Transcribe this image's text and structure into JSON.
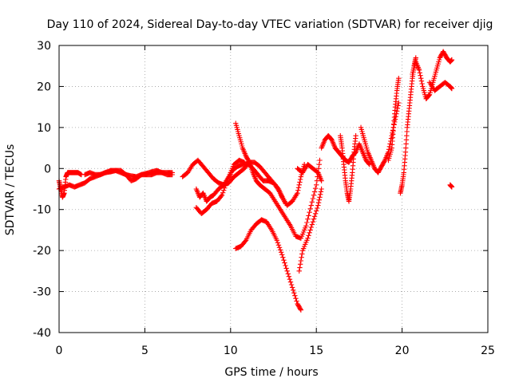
{
  "chart_data": {
    "type": "scatter",
    "title": "Day 110 of 2024, Sidereal Day-to-day VTEC variation (SDTVAR) for receiver djig",
    "xlabel": "GPS time / hours",
    "ylabel": "SDTVAR / TECUs",
    "xlim": [
      0,
      25
    ],
    "ylim": [
      -40,
      30
    ],
    "xticks": [
      0,
      5,
      10,
      15,
      20,
      25
    ],
    "yticks": [
      -40,
      -30,
      -20,
      -10,
      0,
      10,
      20,
      30
    ],
    "xtick_labels": [
      "0",
      "5",
      "10",
      "15",
      "20",
      "25"
    ],
    "ytick_labels": [
      "-40",
      "-30",
      "-20",
      "-10",
      "0",
      "10",
      "20",
      "30"
    ],
    "grid": true,
    "legend": "none",
    "marker": "plus",
    "color": "#ff0000",
    "series": [
      {
        "values": [
          [
            0.0,
            -3
          ],
          [
            0.1,
            -5
          ],
          [
            0.2,
            -7
          ],
          [
            0.3,
            -6
          ],
          [
            0.4,
            -2
          ],
          [
            0.5,
            -1
          ],
          [
            0.7,
            -1
          ],
          [
            0.9,
            -1
          ],
          [
            1.1,
            -1
          ],
          [
            1.3,
            -1.5
          ]
        ]
      },
      {
        "values": [
          [
            0.0,
            -5
          ],
          [
            0.3,
            -4.5
          ],
          [
            0.6,
            -4
          ],
          [
            0.9,
            -4.5
          ],
          [
            1.2,
            -4
          ],
          [
            1.5,
            -3.5
          ],
          [
            1.8,
            -2.5
          ],
          [
            2.1,
            -2
          ],
          [
            2.4,
            -1.5
          ],
          [
            2.7,
            -1
          ],
          [
            3.0,
            -0.5
          ],
          [
            3.3,
            -0.5
          ],
          [
            3.6,
            -0.5
          ],
          [
            3.9,
            -1.5
          ],
          [
            4.2,
            -3
          ],
          [
            4.5,
            -2.5
          ],
          [
            4.8,
            -1.5
          ],
          [
            5.1,
            -1.5
          ],
          [
            5.4,
            -1.5
          ],
          [
            5.7,
            -1
          ],
          [
            6.0,
            -1
          ],
          [
            6.3,
            -1
          ],
          [
            6.6,
            -1
          ]
        ]
      },
      {
        "values": [
          [
            1.5,
            -1.5
          ],
          [
            1.8,
            -1
          ],
          [
            2.1,
            -1.5
          ],
          [
            2.4,
            -1.5
          ],
          [
            2.7,
            -1
          ],
          [
            3.0,
            -0.8
          ],
          [
            3.3,
            -0.5
          ],
          [
            3.6,
            -1
          ],
          [
            3.9,
            -1.5
          ],
          [
            4.2,
            -1.8
          ],
          [
            4.5,
            -2
          ],
          [
            4.8,
            -1.5
          ],
          [
            5.1,
            -1.2
          ],
          [
            5.4,
            -0.8
          ],
          [
            5.7,
            -0.5
          ],
          [
            6.0,
            -1
          ],
          [
            6.3,
            -1.5
          ],
          [
            6.6,
            -1.5
          ]
        ]
      },
      {
        "values": [
          [
            7.2,
            -2
          ],
          [
            7.5,
            -1
          ],
          [
            7.8,
            1
          ],
          [
            8.1,
            2
          ],
          [
            8.4,
            0.5
          ],
          [
            8.7,
            -1
          ],
          [
            9.0,
            -2.5
          ],
          [
            9.3,
            -3.5
          ],
          [
            9.6,
            -4
          ],
          [
            9.9,
            -3.5
          ],
          [
            10.2,
            -2
          ],
          [
            10.5,
            -1
          ],
          [
            10.8,
            0
          ],
          [
            11.1,
            1.5
          ],
          [
            11.4,
            1.5
          ],
          [
            11.7,
            0.5
          ],
          [
            12.0,
            -1
          ],
          [
            12.3,
            -2.5
          ],
          [
            12.6,
            -4
          ],
          [
            12.9,
            -6
          ],
          [
            13.2,
            -8.5
          ]
        ]
      },
      {
        "values": [
          [
            8.0,
            -5
          ],
          [
            8.2,
            -7
          ],
          [
            8.4,
            -6
          ],
          [
            8.6,
            -8
          ],
          [
            8.8,
            -7
          ],
          [
            9.0,
            -6.5
          ],
          [
            9.3,
            -5
          ],
          [
            9.6,
            -4
          ],
          [
            9.9,
            -2
          ],
          [
            10.2,
            1
          ],
          [
            10.5,
            2
          ],
          [
            10.8,
            1.5
          ]
        ]
      },
      {
        "values": [
          [
            8.0,
            -9.5
          ],
          [
            8.3,
            -11
          ],
          [
            8.6,
            -10
          ],
          [
            8.9,
            -8.5
          ],
          [
            9.2,
            -8
          ],
          [
            9.5,
            -6.5
          ],
          [
            9.8,
            -3
          ],
          [
            10.1,
            -0.5
          ],
          [
            10.4,
            0.5
          ],
          [
            10.7,
            1
          ],
          [
            11.0,
            1.2
          ],
          [
            11.3,
            0
          ],
          [
            11.6,
            -1.5
          ],
          [
            11.9,
            -3
          ],
          [
            12.2,
            -3
          ],
          [
            12.5,
            -3.5
          ],
          [
            12.8,
            -5
          ],
          [
            13.0,
            -7
          ],
          [
            13.3,
            -9
          ],
          [
            13.6,
            -8
          ],
          [
            13.9,
            -6
          ],
          [
            14.1,
            -2
          ],
          [
            14.3,
            1
          ]
        ]
      },
      {
        "values": [
          [
            10.3,
            11
          ],
          [
            10.5,
            8
          ],
          [
            10.7,
            5
          ],
          [
            10.9,
            3
          ],
          [
            11.1,
            1.5
          ],
          [
            11.3,
            -1
          ],
          [
            11.5,
            -3
          ],
          [
            11.7,
            -4
          ],
          [
            12.0,
            -5
          ],
          [
            12.3,
            -6
          ],
          [
            12.6,
            -8
          ],
          [
            12.9,
            -10
          ],
          [
            13.2,
            -12
          ],
          [
            13.5,
            -14
          ],
          [
            13.8,
            -16.5
          ],
          [
            14.1,
            -17
          ],
          [
            14.4,
            -14
          ],
          [
            14.7,
            -9
          ],
          [
            15.0,
            -4
          ],
          [
            15.2,
            2
          ]
        ]
      },
      {
        "values": [
          [
            10.3,
            -19.5
          ],
          [
            10.6,
            -19
          ],
          [
            10.9,
            -17.5
          ],
          [
            11.2,
            -15
          ],
          [
            11.5,
            -13.5
          ],
          [
            11.8,
            -12.5
          ],
          [
            12.1,
            -13
          ],
          [
            12.4,
            -15
          ],
          [
            12.7,
            -17.5
          ],
          [
            13.0,
            -21
          ],
          [
            13.3,
            -25
          ],
          [
            13.6,
            -29
          ],
          [
            13.9,
            -33
          ],
          [
            14.1,
            -34.5
          ]
        ]
      },
      {
        "values": [
          [
            14.0,
            -25
          ],
          [
            14.2,
            -20
          ],
          [
            14.5,
            -17
          ],
          [
            14.8,
            -13
          ],
          [
            15.1,
            -9
          ],
          [
            15.3,
            -5
          ]
        ]
      },
      {
        "values": [
          [
            13.9,
            0
          ],
          [
            14.2,
            -1
          ],
          [
            14.5,
            1
          ],
          [
            14.8,
            0
          ],
          [
            15.1,
            -1
          ],
          [
            15.3,
            -3
          ]
        ]
      },
      {
        "values": [
          [
            15.3,
            5
          ],
          [
            15.5,
            7
          ],
          [
            15.7,
            8
          ],
          [
            15.9,
            7
          ],
          [
            16.1,
            5
          ],
          [
            16.3,
            4
          ],
          [
            16.5,
            3
          ],
          [
            16.7,
            2
          ],
          [
            16.9,
            1.5
          ],
          [
            17.1,
            3
          ],
          [
            17.3,
            4
          ],
          [
            17.5,
            6
          ],
          [
            17.7,
            4
          ],
          [
            17.9,
            2
          ],
          [
            18.1,
            1
          ]
        ]
      },
      {
        "values": [
          [
            16.4,
            8
          ],
          [
            16.5,
            5
          ],
          [
            16.6,
            1
          ],
          [
            16.7,
            -3
          ],
          [
            16.8,
            -6
          ],
          [
            16.9,
            -8
          ],
          [
            17.0,
            -5
          ],
          [
            17.1,
            -1
          ],
          [
            17.2,
            4
          ],
          [
            17.3,
            8
          ]
        ]
      },
      {
        "values": [
          [
            17.6,
            10
          ],
          [
            17.8,
            7
          ],
          [
            18.0,
            4
          ],
          [
            18.2,
            2
          ],
          [
            18.4,
            0
          ],
          [
            18.6,
            -1
          ],
          [
            18.8,
            0.5
          ],
          [
            19.0,
            2
          ],
          [
            19.2,
            4
          ],
          [
            19.4,
            8
          ],
          [
            19.6,
            12
          ],
          [
            19.8,
            16
          ]
        ]
      },
      {
        "values": [
          [
            19.2,
            2
          ],
          [
            19.4,
            5
          ],
          [
            19.5,
            10
          ],
          [
            19.6,
            15
          ],
          [
            19.7,
            19
          ],
          [
            19.8,
            22
          ]
        ]
      },
      {
        "values": [
          [
            19.9,
            -6
          ],
          [
            20.0,
            -4
          ],
          [
            20.1,
            -1
          ],
          [
            20.2,
            4
          ],
          [
            20.3,
            10
          ],
          [
            20.4,
            14
          ],
          [
            20.5,
            18
          ],
          [
            20.6,
            22
          ],
          [
            20.7,
            25
          ],
          [
            20.8,
            27
          ]
        ]
      },
      {
        "values": [
          [
            20.6,
            23
          ],
          [
            20.8,
            26
          ],
          [
            21.0,
            24
          ],
          [
            21.2,
            20
          ],
          [
            21.4,
            17
          ],
          [
            21.6,
            18
          ],
          [
            21.8,
            21
          ],
          [
            22.0,
            24
          ],
          [
            22.2,
            27
          ],
          [
            22.4,
            28.5
          ],
          [
            22.6,
            27
          ],
          [
            22.8,
            26
          ],
          [
            22.9,
            26.5
          ]
        ]
      },
      {
        "values": [
          [
            21.6,
            21
          ],
          [
            21.9,
            19
          ],
          [
            22.2,
            20
          ],
          [
            22.5,
            21
          ],
          [
            22.8,
            20
          ],
          [
            22.9,
            19.5
          ]
        ]
      },
      {
        "values": [
          [
            22.8,
            -4
          ],
          [
            22.9,
            -4.5
          ]
        ]
      }
    ]
  }
}
